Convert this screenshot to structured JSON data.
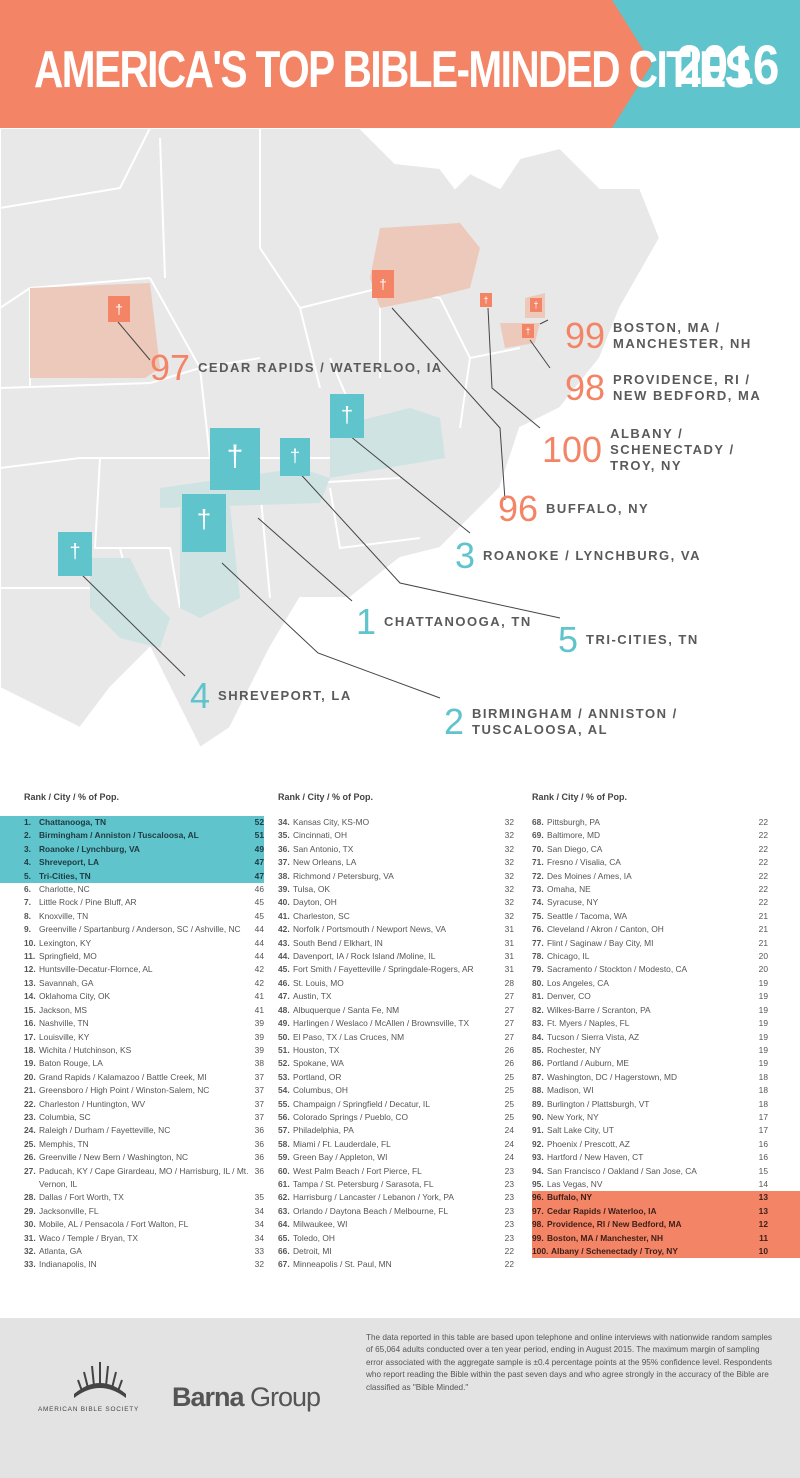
{
  "header": {
    "title": "AMERICA'S TOP BIBLE-MINDED CITIES",
    "year": "2016",
    "colors": {
      "title_band": "#f48466",
      "year_band": "#5fc4cc"
    }
  },
  "chart_data": {
    "type": "table",
    "title": "AMERICA'S TOP BIBLE-MINDED CITIES",
    "year": "2016",
    "map_callouts": [
      {
        "rank": "97",
        "name": "CEDAR RAPIDS / WATERLOO, IA",
        "color": "coral"
      },
      {
        "rank": "99",
        "name": "BOSTON, MA / MANCHESTER, NH",
        "color": "coral"
      },
      {
        "rank": "98",
        "name": "PROVIDENCE, RI / NEW BEDFORD, MA",
        "color": "coral"
      },
      {
        "rank": "100",
        "name": "ALBANY / SCHENECTADY / TROY, NY",
        "color": "coral"
      },
      {
        "rank": "96",
        "name": "BUFFALO, NY",
        "color": "coral"
      },
      {
        "rank": "3",
        "name": "ROANOKE / LYNCHBURG, VA",
        "color": "teal"
      },
      {
        "rank": "1",
        "name": "CHATTANOOGA, TN",
        "color": "teal"
      },
      {
        "rank": "5",
        "name": "TRI-CITIES, TN",
        "color": "teal"
      },
      {
        "rank": "4",
        "name": "SHREVEPORT, LA",
        "color": "teal"
      },
      {
        "rank": "2",
        "name": "BIRMINGHAM / ANNISTON / TUSCALOOSA, AL",
        "color": "teal"
      }
    ],
    "column_header": "Rank  /  City  /  % of Pop.",
    "columns": [
      [
        [
          "1.",
          "Chattanooga, TN",
          "52"
        ],
        [
          "2.",
          "Birmingham / Anniston / Tuscaloosa, AL",
          "51"
        ],
        [
          "3.",
          "Roanoke / Lynchburg, VA",
          "49"
        ],
        [
          "4.",
          "Shreveport, LA",
          "47"
        ],
        [
          "5.",
          "Tri-Cities, TN",
          "47"
        ],
        [
          "6.",
          "Charlotte, NC",
          "46"
        ],
        [
          "7.",
          "Little Rock / Pine Bluff, AR",
          "45"
        ],
        [
          "8.",
          "Knoxville, TN",
          "45"
        ],
        [
          "9.",
          "Greenville / Spartanburg / Anderson, SC / Ashville, NC",
          "44"
        ],
        [
          "10.",
          "Lexington, KY",
          "44"
        ],
        [
          "11.",
          "Springfield, MO",
          "44"
        ],
        [
          "12.",
          "Huntsville-Decatur-Flornce, AL",
          "42"
        ],
        [
          "13.",
          "Savannah, GA",
          "42"
        ],
        [
          "14.",
          "Oklahoma City, OK",
          "41"
        ],
        [
          "15.",
          "Jackson, MS",
          "41"
        ],
        [
          "16.",
          "Nashville, TN",
          "39"
        ],
        [
          "17.",
          "Louisville, KY",
          "39"
        ],
        [
          "18.",
          "Wichita / Hutchinson, KS",
          "39"
        ],
        [
          "19.",
          "Baton Rouge, LA",
          "38"
        ],
        [
          "20.",
          "Grand Rapids / Kalamazoo / Battle Creek, MI",
          "37"
        ],
        [
          "21.",
          "Greensboro / High Point / Winston-Salem, NC",
          "37"
        ],
        [
          "22.",
          "Charleston / Huntington, WV",
          "37"
        ],
        [
          "23.",
          "Columbia, SC",
          "37"
        ],
        [
          "24.",
          "Raleigh / Durham / Fayetteville, NC",
          "36"
        ],
        [
          "25.",
          "Memphis, TN",
          "36"
        ],
        [
          "26.",
          "Greenville / New Bern / Washington, NC",
          "36"
        ],
        [
          "27.",
          "Paducah, KY / Cape Girardeau, MO / Harrisburg, IL / Mt. Vernon, IL",
          "36"
        ],
        [
          "28.",
          "Dallas / Fort Worth, TX",
          "35"
        ],
        [
          "29.",
          "Jacksonville, FL",
          "34"
        ],
        [
          "30.",
          "Mobile, AL / Pensacola / Fort Walton, FL",
          "34"
        ],
        [
          "31.",
          "Waco / Temple / Bryan, TX",
          "34"
        ],
        [
          "32.",
          "Atlanta, GA",
          "33"
        ],
        [
          "33.",
          "Indianapolis, IN",
          "32"
        ]
      ],
      [
        [
          "34.",
          "Kansas City, KS-MO",
          "32"
        ],
        [
          "35.",
          "Cincinnati, OH",
          "32"
        ],
        [
          "36.",
          "San Antonio, TX",
          "32"
        ],
        [
          "37.",
          "New Orleans, LA",
          "32"
        ],
        [
          "38.",
          "Richmond / Petersburg, VA",
          "32"
        ],
        [
          "39.",
          "Tulsa, OK",
          "32"
        ],
        [
          "40.",
          "Dayton, OH",
          "32"
        ],
        [
          "41.",
          "Charleston, SC",
          "32"
        ],
        [
          "42.",
          "Norfolk / Portsmouth / Newport News, VA",
          "31"
        ],
        [
          "43.",
          "South Bend / Elkhart,  IN",
          "31"
        ],
        [
          "44.",
          "Davenport, IA / Rock Island /Moline, IL",
          "31"
        ],
        [
          "45.",
          "Fort Smith / Fayetteville / Springdale-Rogers, AR",
          "31"
        ],
        [
          "46.",
          "St. Louis, MO",
          "28"
        ],
        [
          "47.",
          "Austin, TX",
          "27"
        ],
        [
          "48.",
          "Albuquerque / Santa Fe, NM",
          "27"
        ],
        [
          "49.",
          "Harlingen / Weslaco / McAllen / Brownsville, TX",
          "27"
        ],
        [
          "50.",
          "El Paso, TX / Las Cruces, NM",
          "27"
        ],
        [
          "51.",
          "Houston, TX",
          "26"
        ],
        [
          "52.",
          "Spokane, WA",
          "26"
        ],
        [
          "53.",
          "Portland, OR",
          "25"
        ],
        [
          "54.",
          "Columbus, OH",
          "25"
        ],
        [
          "55.",
          "Champaign / Springfield / Decatur, IL",
          "25"
        ],
        [
          "56.",
          "Colorado Springs / Pueblo, CO",
          "25"
        ],
        [
          "57.",
          "Philadelphia, PA",
          "24"
        ],
        [
          "58.",
          "Miami / Ft. Lauderdale, FL",
          "24"
        ],
        [
          "59.",
          "Green Bay / Appleton, WI",
          "24"
        ],
        [
          "60.",
          "West Palm Beach / Fort Pierce, FL",
          "23"
        ],
        [
          "61.",
          "Tampa / St. Petersburg / Sarasota, FL",
          "23"
        ],
        [
          "62.",
          "Harrisburg / Lancaster / Lebanon / York, PA",
          "23"
        ],
        [
          "63.",
          "Orlando / Daytona Beach / Melbourne, FL",
          "23"
        ],
        [
          "64.",
          "Milwaukee, WI",
          "23"
        ],
        [
          "65.",
          "Toledo, OH",
          "23"
        ],
        [
          "66.",
          "Detroit, MI",
          "22"
        ],
        [
          "67.",
          "Minneapolis / St. Paul, MN",
          "22"
        ]
      ],
      [
        [
          "68.",
          "Pittsburgh, PA",
          "22"
        ],
        [
          "69.",
          "Baltimore, MD",
          "22"
        ],
        [
          "70.",
          "San Diego, CA",
          "22"
        ],
        [
          "71.",
          "Fresno / Visalia, CA",
          "22"
        ],
        [
          "72.",
          "Des Moines / Ames, IA",
          "22"
        ],
        [
          "73.",
          "Omaha, NE",
          "22"
        ],
        [
          "74.",
          "Syracuse, NY",
          "22"
        ],
        [
          "75.",
          "Seattle / Tacoma, WA",
          "21"
        ],
        [
          "76.",
          "Cleveland / Akron / Canton, OH",
          "21"
        ],
        [
          "77.",
          "Flint / Saginaw / Bay City, MI",
          "21"
        ],
        [
          "78.",
          "Chicago, IL",
          "20"
        ],
        [
          "79.",
          "Sacramento / Stockton / Modesto, CA",
          "20"
        ],
        [
          "80.",
          "Los Angeles, CA",
          "19"
        ],
        [
          "81.",
          "Denver, CO",
          "19"
        ],
        [
          "82.",
          "Wilkes-Barre / Scranton, PA",
          "19"
        ],
        [
          "83.",
          "Ft. Myers / Naples, FL",
          "19"
        ],
        [
          "84.",
          "Tucson / Sierra Vista, AZ",
          "19"
        ],
        [
          "85.",
          "Rochester, NY",
          "19"
        ],
        [
          "86.",
          "Portland / Auburn, ME",
          "19"
        ],
        [
          "87.",
          "Washington, DC / Hagerstown, MD",
          "18"
        ],
        [
          "88.",
          "Madison, WI",
          "18"
        ],
        [
          "89.",
          "Burlington / Plattsburgh, VT",
          "18"
        ],
        [
          "90.",
          "New York, NY",
          "17"
        ],
        [
          "91.",
          "Salt Lake City, UT",
          "17"
        ],
        [
          "92.",
          "Phoenix / Prescott, AZ",
          "16"
        ],
        [
          "93.",
          "Hartford / New Haven, CT",
          "16"
        ],
        [
          "94.",
          "San Francisco / Oakland / San Jose, CA",
          "15"
        ],
        [
          "95.",
          "Las Vegas, NV",
          "14"
        ],
        [
          "96.",
          "Buffalo, NY",
          "13"
        ],
        [
          "97.",
          "Cedar Rapids / Waterloo, IA",
          "13"
        ],
        [
          "98.",
          "Providence, RI / New Bedford, MA",
          "12"
        ],
        [
          "99.",
          "Boston, MA / Manchester, NH",
          "11"
        ],
        [
          "100.",
          "Albany / Schenectady / Troy, NY",
          "10"
        ]
      ]
    ],
    "highlight_top_color": "#5fc4cc",
    "highlight_bottom_color": "#f48466"
  },
  "footer": {
    "abs_name": "AMERICAN BIBLE SOCIETY",
    "barna_bold": "Barna",
    "barna_light": " Group",
    "note": "The data reported in this table are based upon telephone and online interviews with nationwide random samples of 65,064 adults conducted over a ten year period, ending in August 2015. The maximum margin of sampling error associated with the aggregate sample is ±0.4 percentage points at the 95% confidence level. Respondents who report reading the Bible within the past seven days and who agree strongly in the accuracy of the Bible are classified as \"Bible Minded.\""
  }
}
